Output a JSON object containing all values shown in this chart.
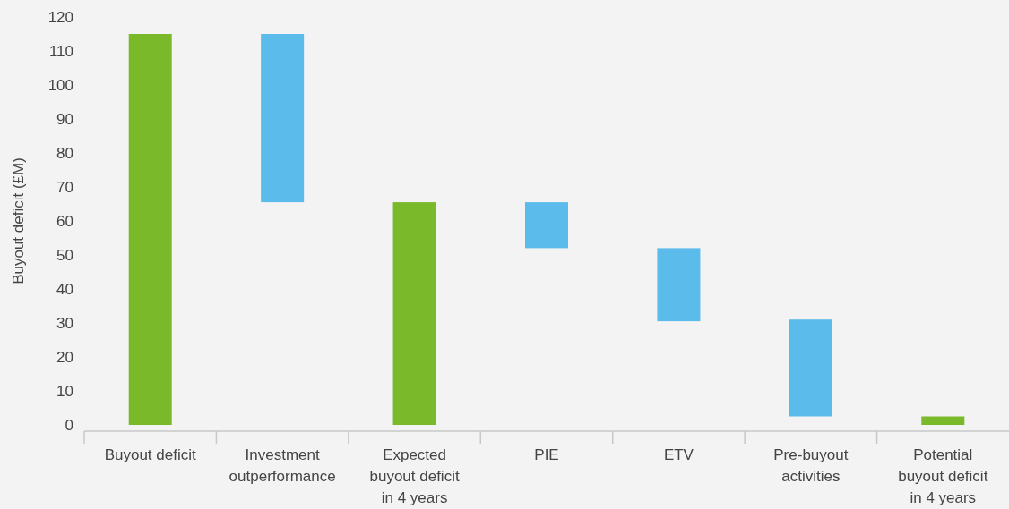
{
  "chart_data": {
    "type": "bar",
    "ylabel": "Buyout deficit (£M)",
    "categories": [
      "Buyout deficit",
      "Investment outperformance",
      "Expected buyout deficit in 4 years",
      "PIE",
      "ETV",
      "Pre-buyout activities",
      "Potential buyout deficit in 4 years"
    ],
    "values": [
      115,
      49.5,
      65.5,
      13.5,
      21.5,
      28.5,
      2.5
    ],
    "base": [
      0,
      65.5,
      0,
      52,
      30.5,
      2.5,
      0
    ],
    "colors": [
      "#7ab929",
      "#5bbcec",
      "#7ab929",
      "#5bbcec",
      "#5bbcec",
      "#5bbcec",
      "#7ab929"
    ],
    "ylim": [
      0,
      120
    ],
    "yticks": [
      0,
      10,
      20,
      30,
      40,
      50,
      60,
      70,
      80,
      90,
      100,
      110,
      120
    ],
    "grid": false
  }
}
